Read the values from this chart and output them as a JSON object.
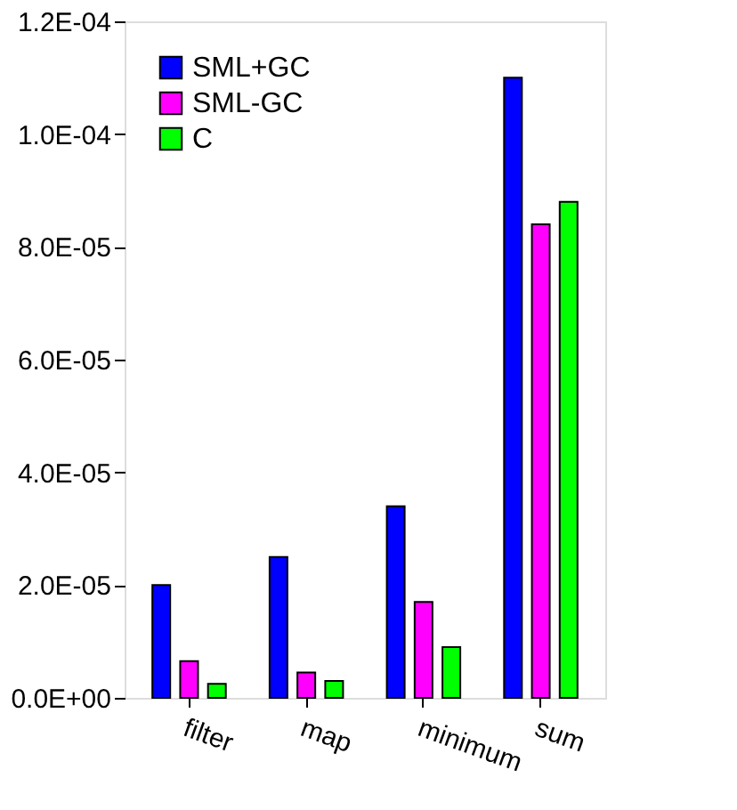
{
  "chart_data": {
    "type": "bar",
    "categories": [
      "filter",
      "map",
      "minimum",
      "sum"
    ],
    "series": [
      {
        "name": "SML+GC",
        "color": "#0000ff",
        "values": [
          2e-05,
          2.5e-05,
          3.4e-05,
          0.00011
        ]
      },
      {
        "name": "SML-GC",
        "color": "#ff00ff",
        "values": [
          6.5e-06,
          4.5e-06,
          1.7e-05,
          8.4e-05
        ]
      },
      {
        "name": "C",
        "color": "#00ff00",
        "values": [
          2.5e-06,
          3e-06,
          9e-06,
          8.8e-05
        ]
      }
    ],
    "ylim": [
      0,
      0.00012
    ],
    "yticks": [
      {
        "value": 0,
        "label": "0.0E+00"
      },
      {
        "value": 2e-05,
        "label": "2.0E-05"
      },
      {
        "value": 4e-05,
        "label": "4.0E-05"
      },
      {
        "value": 6e-05,
        "label": "6.0E-05"
      },
      {
        "value": 8e-05,
        "label": "8.0E-05"
      },
      {
        "value": 0.0001,
        "label": "1.0E-04"
      },
      {
        "value": 0.00012,
        "label": "1.2E-04"
      }
    ],
    "grid": false,
    "legend": "top left"
  }
}
